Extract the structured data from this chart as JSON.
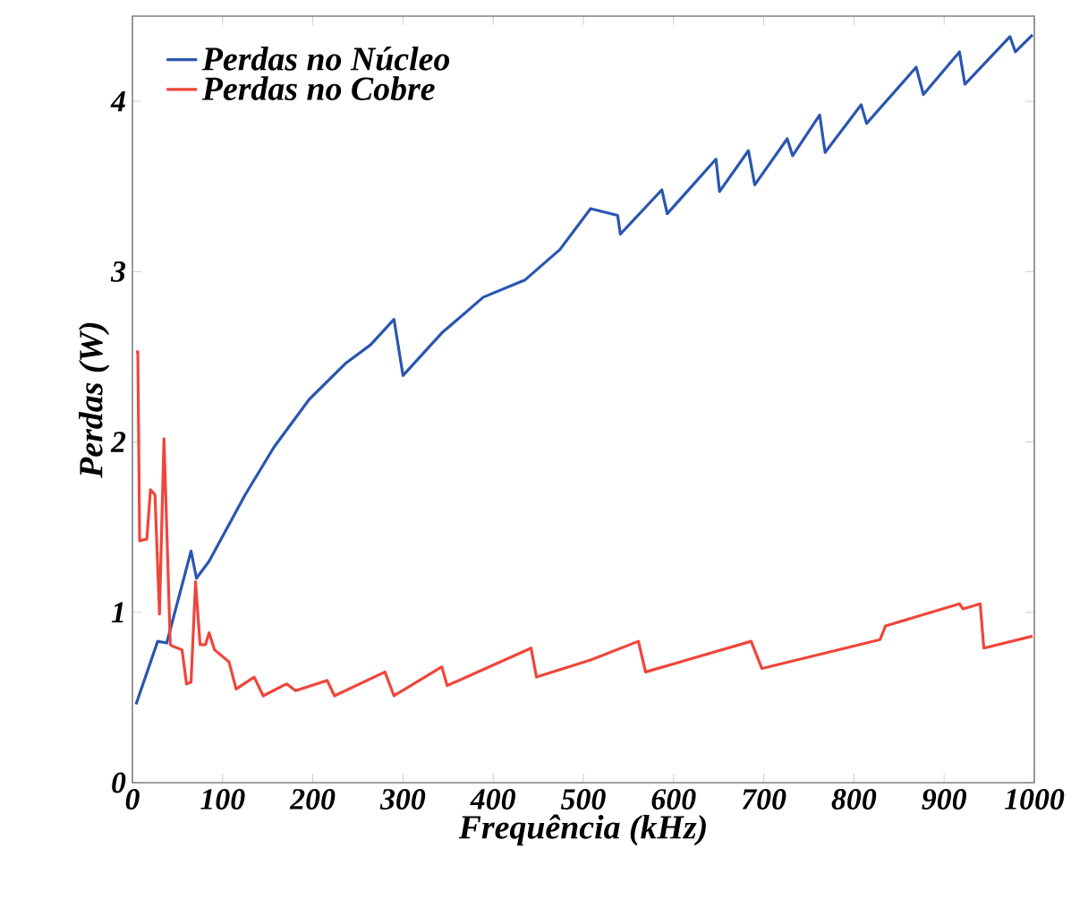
{
  "chart_data": {
    "type": "line",
    "xlabel": "Frequência (kHz)",
    "ylabel": "Perdas (W)",
    "xlim": [
      0,
      1000
    ],
    "ylim": [
      0,
      4.5
    ],
    "xticks": [
      0,
      100,
      200,
      300,
      400,
      500,
      600,
      700,
      800,
      900,
      1000
    ],
    "yticks": [
      0,
      1,
      2,
      3,
      4
    ],
    "legend": "top left",
    "grid": false,
    "series": [
      {
        "name": "Perdas no Núcleo",
        "color": "#2a56b0",
        "x": [
          4,
          28,
          38,
          65,
          71,
          85,
          125,
          157,
          196,
          236,
          264,
          290,
          300,
          343,
          389,
          435,
          474,
          508,
          538,
          541,
          587,
          593,
          647,
          651,
          683,
          690,
          726,
          732,
          762,
          768,
          808,
          814,
          869,
          877,
          917,
          923,
          973,
          979,
          998
        ],
        "values": [
          0.46,
          0.83,
          0.82,
          1.36,
          1.2,
          1.3,
          1.69,
          1.97,
          2.25,
          2.46,
          2.57,
          2.72,
          2.39,
          2.64,
          2.85,
          2.95,
          3.13,
          3.37,
          3.33,
          3.22,
          3.48,
          3.34,
          3.66,
          3.47,
          3.71,
          3.51,
          3.78,
          3.68,
          3.92,
          3.7,
          3.98,
          3.87,
          4.2,
          4.04,
          4.29,
          4.1,
          4.38,
          4.29,
          4.39
        ]
      },
      {
        "name": "Perdas no Cobre",
        "color": "#f0453a",
        "x": [
          4,
          6,
          8,
          16,
          20,
          25,
          30,
          35,
          42,
          45,
          55,
          60,
          65,
          70,
          75,
          81,
          85,
          91,
          107,
          115,
          135,
          145,
          171,
          181,
          216,
          224,
          280,
          290,
          343,
          349,
          442,
          448,
          508,
          561,
          569,
          686,
          698,
          829,
          835,
          917,
          921,
          940,
          944,
          998
        ],
        "values": [
          2.53,
          2.53,
          1.42,
          1.43,
          1.72,
          1.69,
          0.99,
          2.02,
          0.81,
          0.8,
          0.78,
          0.58,
          0.59,
          1.18,
          0.81,
          0.81,
          0.88,
          0.78,
          0.71,
          0.55,
          0.62,
          0.51,
          0.58,
          0.54,
          0.6,
          0.51,
          0.65,
          0.51,
          0.68,
          0.57,
          0.79,
          0.62,
          0.72,
          0.83,
          0.65,
          0.83,
          0.67,
          0.84,
          0.92,
          1.05,
          1.02,
          1.05,
          0.79,
          0.86
        ]
      }
    ]
  }
}
